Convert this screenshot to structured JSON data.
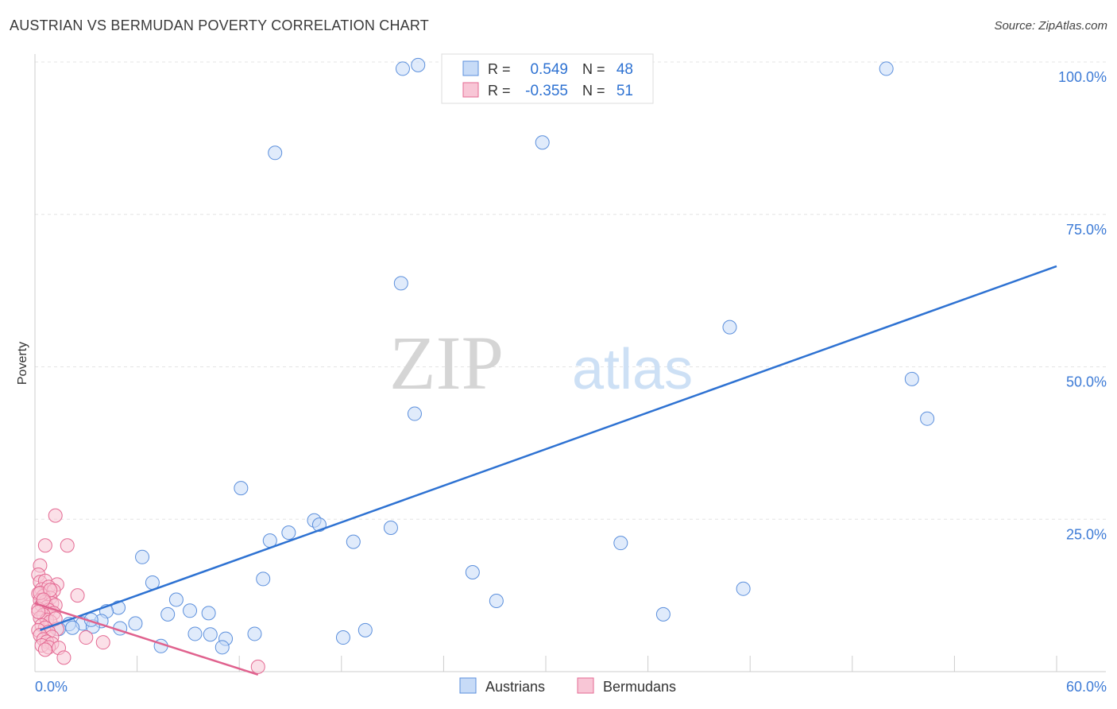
{
  "chart_data": {
    "type": "scatter",
    "title": "AUSTRIAN VS BERMUDAN POVERTY CORRELATION CHART",
    "source": "Source: ZipAtlas.com",
    "xlabel": "",
    "ylabel": "Poverty",
    "xlim": [
      0,
      60
    ],
    "ylim": [
      0,
      100
    ],
    "x_tick_labels": [
      {
        "value": 0,
        "label": "0.0%"
      },
      {
        "value": 60,
        "label": "60.0%"
      }
    ],
    "y_tick_labels": [
      {
        "value": 25,
        "label": "25.0%"
      },
      {
        "value": 50,
        "label": "50.0%"
      },
      {
        "value": 75,
        "label": "75.0%"
      },
      {
        "value": 100,
        "label": "100.0%"
      }
    ],
    "colors": {
      "austrians": "#5b8fdc",
      "austrians_fill": "#c7dbf7",
      "austrians_line": "#2e72d2",
      "bermudans": "#e46a93",
      "bermudans_fill": "#f8c6d6",
      "bermudans_line": "#e0628e",
      "axis_text": "#3d7bd6"
    },
    "legend": {
      "r_label": "R =",
      "n_label": "N =",
      "items": [
        {
          "name": "Austrians",
          "r": "0.549",
          "n": "48"
        },
        {
          "name": "Bermudans",
          "r": "-0.355",
          "n": "51"
        }
      ]
    },
    "watermark": {
      "zip": "ZIP",
      "atlas": "atlas"
    },
    "series": [
      {
        "name": "Austrians",
        "points": [
          [
            21.6,
            98.9
          ],
          [
            50.0,
            98.9
          ],
          [
            14.1,
            85.1
          ],
          [
            29.8,
            86.8
          ],
          [
            21.5,
            63.7
          ],
          [
            40.8,
            56.5
          ],
          [
            51.5,
            48.0
          ],
          [
            22.3,
            42.3
          ],
          [
            52.4,
            41.5
          ],
          [
            12.1,
            30.1
          ],
          [
            16.4,
            24.8
          ],
          [
            16.7,
            24.1
          ],
          [
            14.9,
            22.8
          ],
          [
            20.9,
            23.6
          ],
          [
            13.8,
            21.5
          ],
          [
            18.7,
            21.3
          ],
          [
            34.4,
            21.1
          ],
          [
            6.3,
            18.8
          ],
          [
            25.7,
            16.3
          ],
          [
            6.9,
            14.6
          ],
          [
            13.4,
            15.2
          ],
          [
            41.6,
            13.6
          ],
          [
            27.1,
            11.6
          ],
          [
            8.3,
            11.8
          ],
          [
            4.9,
            10.5
          ],
          [
            4.2,
            9.9
          ],
          [
            9.1,
            10.0
          ],
          [
            10.2,
            9.6
          ],
          [
            7.8,
            9.4
          ],
          [
            36.9,
            9.4
          ],
          [
            3.9,
            8.3
          ],
          [
            5.9,
            7.9
          ],
          [
            2.8,
            7.9
          ],
          [
            2.0,
            7.8
          ],
          [
            3.4,
            7.4
          ],
          [
            2.2,
            7.2
          ],
          [
            5.0,
            7.1
          ],
          [
            1.4,
            7.0
          ],
          [
            9.4,
            6.2
          ],
          [
            10.3,
            6.1
          ],
          [
            12.9,
            6.2
          ],
          [
            19.4,
            6.8
          ],
          [
            11.2,
            5.4
          ],
          [
            18.1,
            5.6
          ],
          [
            7.4,
            4.2
          ],
          [
            11.0,
            4.0
          ],
          [
            22.5,
            99.5
          ],
          [
            3.3,
            8.5
          ]
        ]
      },
      {
        "name": "Bermudans",
        "points": [
          [
            1.2,
            25.6
          ],
          [
            0.6,
            20.7
          ],
          [
            1.9,
            20.7
          ],
          [
            0.3,
            17.4
          ],
          [
            0.2,
            15.9
          ],
          [
            0.3,
            14.7
          ],
          [
            0.6,
            14.9
          ],
          [
            1.3,
            14.3
          ],
          [
            0.4,
            13.5
          ],
          [
            0.8,
            13.9
          ],
          [
            1.1,
            13.3
          ],
          [
            0.2,
            12.8
          ],
          [
            0.5,
            12.4
          ],
          [
            0.9,
            12.1
          ],
          [
            2.5,
            12.5
          ],
          [
            0.3,
            11.7
          ],
          [
            0.6,
            11.4
          ],
          [
            1.0,
            11.2
          ],
          [
            0.4,
            10.9
          ],
          [
            0.7,
            10.6
          ],
          [
            1.2,
            10.9
          ],
          [
            0.2,
            10.3
          ],
          [
            0.8,
            10.1
          ],
          [
            1.1,
            9.6
          ],
          [
            0.5,
            9.3
          ],
          [
            0.3,
            8.8
          ],
          [
            0.7,
            8.5
          ],
          [
            0.9,
            8.2
          ],
          [
            0.4,
            7.6
          ],
          [
            0.6,
            7.2
          ],
          [
            1.3,
            7.0
          ],
          [
            0.2,
            6.8
          ],
          [
            0.8,
            6.5
          ],
          [
            0.3,
            6.0
          ],
          [
            1.0,
            5.7
          ],
          [
            0.5,
            5.3
          ],
          [
            0.7,
            4.9
          ],
          [
            1.0,
            4.6
          ],
          [
            3.0,
            5.6
          ],
          [
            4.0,
            4.8
          ],
          [
            0.4,
            4.3
          ],
          [
            0.8,
            4.0
          ],
          [
            1.4,
            3.9
          ],
          [
            0.6,
            3.6
          ],
          [
            1.7,
            2.3
          ],
          [
            13.1,
            0.8
          ],
          [
            0.3,
            12.9
          ],
          [
            0.9,
            13.4
          ],
          [
            0.5,
            11.8
          ],
          [
            1.2,
            8.7
          ],
          [
            0.2,
            9.8
          ]
        ]
      }
    ],
    "trendlines": [
      {
        "name": "Austrians",
        "x": [
          0.3,
          60.0
        ],
        "y": [
          6.8,
          66.5
        ]
      },
      {
        "name": "Bermudans",
        "x": [
          0.0,
          13.1
        ],
        "y": [
          11.2,
          -0.5
        ]
      }
    ]
  }
}
